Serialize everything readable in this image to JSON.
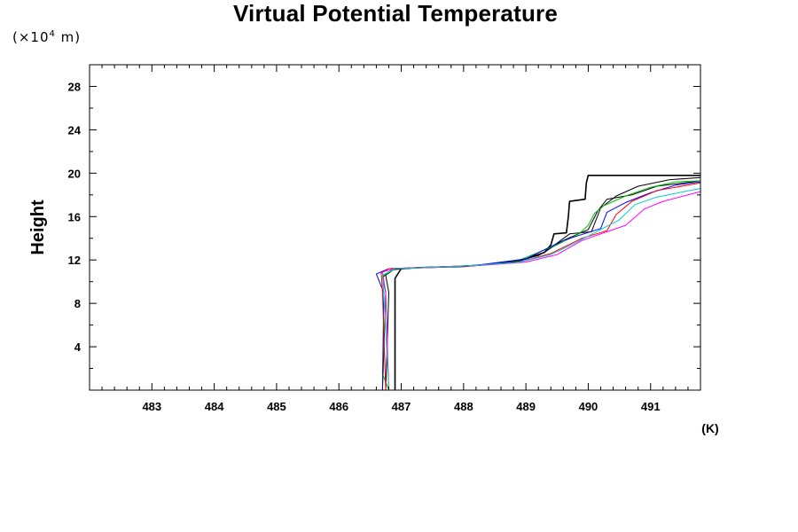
{
  "chart_data": {
    "type": "line",
    "title": "Virtual Potential Temperature",
    "xlabel": "(K)",
    "ylabel": "Height",
    "yunit": {
      "prefix": "(×10",
      "exponent": "4",
      "suffix": " m)"
    },
    "xlim": [
      482.0,
      491.8
    ],
    "ylim": [
      0,
      30.0
    ],
    "x_ticks": [
      483,
      484,
      485,
      486,
      487,
      488,
      489,
      490,
      491
    ],
    "y_ticks": [
      4,
      8,
      12,
      16,
      20,
      24,
      28
    ],
    "grid": false,
    "series": [
      {
        "color": "#000000",
        "width": 1.6,
        "points": [
          [
            486.9,
            0.0
          ],
          [
            486.9,
            10.3
          ],
          [
            487.0,
            11.2
          ],
          [
            487.3,
            11.3
          ],
          [
            488.0,
            11.4
          ],
          [
            488.6,
            11.7
          ],
          [
            489.0,
            12.1
          ],
          [
            489.3,
            12.7
          ],
          [
            489.4,
            13.4
          ],
          [
            489.45,
            14.4
          ],
          [
            489.65,
            14.5
          ],
          [
            489.68,
            16.0
          ],
          [
            489.7,
            17.4
          ],
          [
            489.95,
            17.6
          ],
          [
            489.97,
            19.1
          ],
          [
            490.0,
            19.8
          ],
          [
            491.8,
            19.8
          ]
        ]
      },
      {
        "color": "#000000",
        "width": 1.0,
        "points": [
          [
            486.7,
            0.0
          ],
          [
            486.75,
            9.0
          ],
          [
            486.7,
            10.4
          ],
          [
            486.85,
            11.1
          ],
          [
            487.3,
            11.3
          ],
          [
            488.0,
            11.4
          ],
          [
            488.7,
            11.7
          ],
          [
            489.2,
            12.4
          ],
          [
            489.6,
            13.8
          ],
          [
            490.0,
            14.8
          ],
          [
            490.15,
            16.5
          ],
          [
            490.3,
            17.6
          ],
          [
            490.7,
            18.0
          ],
          [
            491.1,
            18.8
          ],
          [
            491.8,
            19.3
          ]
        ]
      },
      {
        "color": "#000000",
        "width": 1.0,
        "points": [
          [
            486.75,
            0.0
          ],
          [
            486.8,
            9.0
          ],
          [
            486.75,
            10.6
          ],
          [
            486.9,
            11.2
          ],
          [
            487.4,
            11.3
          ],
          [
            488.2,
            11.5
          ],
          [
            488.9,
            11.9
          ],
          [
            489.3,
            12.7
          ],
          [
            489.7,
            14.4
          ],
          [
            490.05,
            14.6
          ],
          [
            490.2,
            16.8
          ],
          [
            490.45,
            17.9
          ],
          [
            490.8,
            18.8
          ],
          [
            491.3,
            19.4
          ],
          [
            491.8,
            19.6
          ]
        ]
      },
      {
        "color": "#00c000",
        "width": 1.0,
        "points": [
          [
            486.8,
            0.0
          ],
          [
            486.7,
            1.5
          ],
          [
            486.75,
            9.0
          ],
          [
            486.7,
            10.5
          ],
          [
            486.9,
            11.2
          ],
          [
            487.4,
            11.3
          ],
          [
            488.2,
            11.5
          ],
          [
            488.9,
            12.0
          ],
          [
            489.5,
            13.4
          ],
          [
            489.85,
            14.4
          ],
          [
            490.0,
            15.2
          ],
          [
            490.1,
            16.3
          ],
          [
            490.25,
            17.0
          ],
          [
            490.6,
            17.9
          ],
          [
            491.0,
            18.7
          ],
          [
            491.4,
            19.2
          ],
          [
            491.8,
            19.3
          ]
        ]
      },
      {
        "color": "#0000ff",
        "width": 1.0,
        "points": [
          [
            486.7,
            0.0
          ],
          [
            486.72,
            9.0
          ],
          [
            486.6,
            10.7
          ],
          [
            486.8,
            11.2
          ],
          [
            487.3,
            11.3
          ],
          [
            488.2,
            11.5
          ],
          [
            489.0,
            12.1
          ],
          [
            489.6,
            13.8
          ],
          [
            490.2,
            14.9
          ],
          [
            490.3,
            16.4
          ],
          [
            490.6,
            17.3
          ],
          [
            491.0,
            18.2
          ],
          [
            491.4,
            18.9
          ],
          [
            491.8,
            19.2
          ]
        ]
      },
      {
        "color": "#ff0000",
        "width": 1.0,
        "points": [
          [
            486.75,
            0.0
          ],
          [
            486.7,
            9.0
          ],
          [
            486.68,
            10.8
          ],
          [
            486.8,
            11.2
          ],
          [
            487.3,
            11.3
          ],
          [
            488.2,
            11.5
          ],
          [
            488.9,
            11.8
          ],
          [
            489.4,
            12.6
          ],
          [
            489.9,
            14.0
          ],
          [
            490.3,
            14.7
          ],
          [
            490.45,
            16.2
          ],
          [
            490.7,
            17.4
          ],
          [
            491.1,
            18.4
          ],
          [
            491.8,
            19.1
          ]
        ]
      },
      {
        "color": "#ff00ff",
        "width": 1.0,
        "points": [
          [
            486.8,
            0.0
          ],
          [
            486.75,
            9.0
          ],
          [
            486.7,
            10.9
          ],
          [
            486.9,
            11.2
          ],
          [
            487.5,
            11.3
          ],
          [
            488.3,
            11.5
          ],
          [
            489.0,
            11.8
          ],
          [
            489.5,
            12.5
          ],
          [
            489.9,
            13.8
          ],
          [
            490.3,
            14.6
          ],
          [
            490.6,
            15.2
          ],
          [
            490.9,
            16.7
          ],
          [
            491.2,
            17.4
          ],
          [
            491.8,
            18.3
          ]
        ]
      },
      {
        "color": "#00cccc",
        "width": 1.0,
        "points": [
          [
            486.8,
            0.0
          ],
          [
            486.72,
            9.0
          ],
          [
            486.7,
            10.6
          ],
          [
            486.9,
            11.2
          ],
          [
            487.4,
            11.3
          ],
          [
            488.2,
            11.5
          ],
          [
            488.9,
            11.8
          ],
          [
            489.4,
            12.5
          ],
          [
            489.8,
            13.6
          ],
          [
            490.2,
            14.8
          ],
          [
            490.5,
            15.7
          ],
          [
            490.75,
            17.1
          ],
          [
            491.1,
            17.8
          ],
          [
            491.8,
            18.6
          ]
        ]
      }
    ]
  }
}
